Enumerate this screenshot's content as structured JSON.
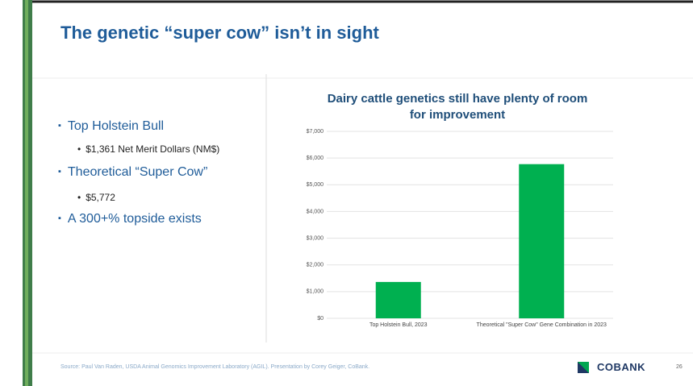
{
  "slide": {
    "title": "The genetic “super cow” isn’t in sight",
    "bullets": [
      {
        "text": "Top Holstein Bull",
        "sub": "$1,361 Net Merit Dollars (NM$)"
      },
      {
        "text": "Theoretical “Super Cow”",
        "sub": "$5,772"
      },
      {
        "text": "A 300+% topside exists"
      }
    ],
    "source": "Source: Paul Van Raden, USDA Animal Genomics Improvement Laboratory (AGIL). Presentation by Corey Geiger, CoBank.",
    "logo": "COBANK",
    "page_number": "26"
  },
  "chart_data": {
    "type": "bar",
    "title": "Dairy cattle genetics still have plenty of room for improvement",
    "categories": [
      "Top Holstein Bull, 2023",
      "Theoretical \"Super Cow\" Gene Combination in 2023"
    ],
    "values": [
      1361,
      5772
    ],
    "color": "#00b050",
    "ylim": [
      0,
      7000
    ],
    "yticks": [
      {
        "value": 0,
        "label": "$0"
      },
      {
        "value": 1000,
        "label": "$1,000"
      },
      {
        "value": 2000,
        "label": "$2,000"
      },
      {
        "value": 3000,
        "label": "$3,000"
      },
      {
        "value": 4000,
        "label": "$4,000"
      },
      {
        "value": 5000,
        "label": "$5,000"
      },
      {
        "value": 6000,
        "label": "$6,000"
      },
      {
        "value": 7000,
        "label": "$7,000"
      }
    ],
    "grid": true
  }
}
